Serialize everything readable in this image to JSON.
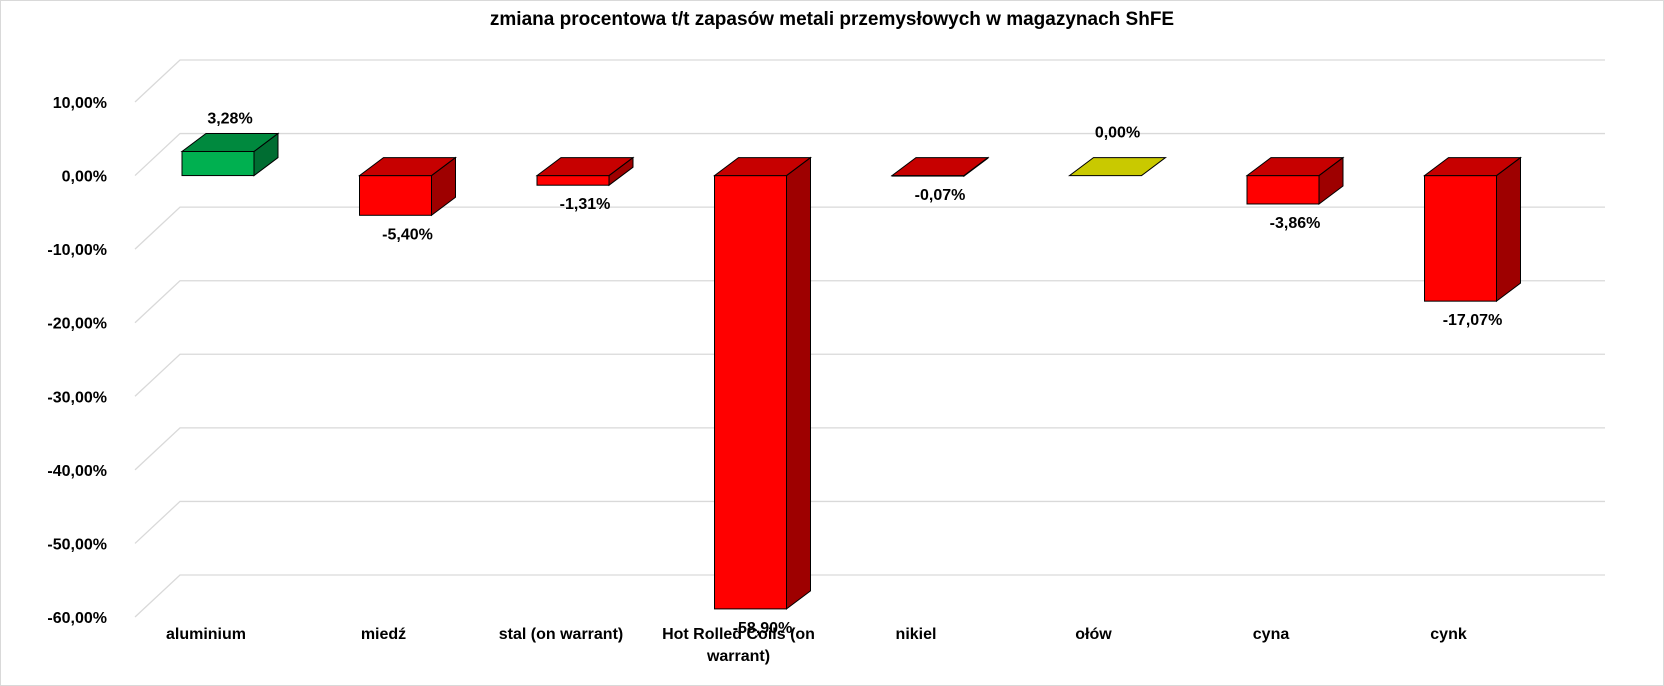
{
  "chart_data": {
    "type": "bar",
    "title": "zmiana procentowa t/t zapasów metali przemysłowych w magazynach ShFE",
    "xlabel": "",
    "ylabel": "",
    "categories": [
      "aluminium",
      "miedź",
      "stal (on warrant)",
      "Hot Rolled Coils (on warrant)",
      "nikiel",
      "ołów",
      "cyna",
      "cynk"
    ],
    "values": [
      3.28,
      -5.4,
      -1.31,
      -58.9,
      -0.07,
      0.0,
      -3.86,
      -17.07
    ],
    "data_labels": [
      "3,28%",
      "-5,40%",
      "-1,31%",
      "-58,90%",
      "-0,07%",
      "0,00%",
      "-3,86%",
      "-17,07%"
    ],
    "ylim": [
      -60,
      10
    ],
    "ytick_values": [
      10,
      0,
      -10,
      -20,
      -30,
      -40,
      -50,
      -60
    ],
    "ytick_labels": [
      "10,00%",
      "0,00%",
      "-10,00%",
      "-20,00%",
      "-30,00%",
      "-40,00%",
      "-50,00%",
      "-60,00%"
    ],
    "grid": true,
    "legend": "none",
    "bar_style": "3d",
    "colors": {
      "positive": "#00b050",
      "negative": "#ff0000",
      "zero": "#c9c900",
      "gridline": "#d9d9d9"
    }
  }
}
